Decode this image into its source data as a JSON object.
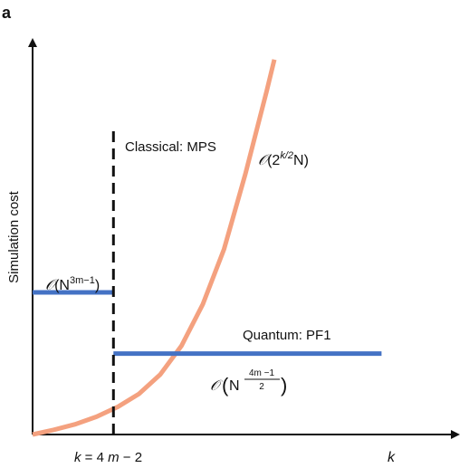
{
  "panel_label": "a",
  "chart_data": {
    "type": "line",
    "title": "",
    "xlabel": "k",
    "ylabel": "Simulation cost",
    "x_tick_label": {
      "k": "k",
      "rest": " = 4m − 2",
      "m": "m"
    },
    "grid": false,
    "legend": "none",
    "annotations": {
      "classical_label": "Classical: MPS",
      "quantum_label": "Quantum: PF1",
      "exp_curve": {
        "O": "𝒪",
        "open": "(2",
        "sup": "k/2",
        "tail": "N)"
      },
      "classical_level": {
        "O": "𝒪",
        "open": "(N",
        "sup": "3m−1",
        "close": ")"
      },
      "quantum_level": {
        "O": "𝒪",
        "open": "(",
        "N": "N",
        "frac_num": "4m −1",
        "frac_den": "2",
        "close": ")"
      }
    },
    "series": [
      {
        "color": "#F4A17F",
        "curve": "exponential",
        "points": [
          [
            0.0,
            0.0
          ],
          [
            0.05,
            0.012
          ],
          [
            0.1,
            0.026
          ],
          [
            0.15,
            0.045
          ],
          [
            0.2,
            0.07
          ],
          [
            0.25,
            0.103
          ],
          [
            0.3,
            0.152
          ],
          [
            0.35,
            0.225
          ],
          [
            0.4,
            0.33
          ],
          [
            0.45,
            0.47
          ],
          [
            0.5,
            0.66
          ],
          [
            0.55,
            0.87
          ],
          [
            0.568,
            0.95
          ]
        ]
      },
      {
        "color": "#4472C4",
        "curve": "classical-level",
        "x": [
          0.0,
          0.19
        ],
        "y": 0.36
      },
      {
        "color": "#4472C4",
        "curve": "quantum-level",
        "x": [
          0.19,
          0.82
        ],
        "y": 0.205
      }
    ],
    "vertical_marker": {
      "x": 0.19,
      "style": "dashed",
      "color": "#111111"
    },
    "xlim": [
      0,
      1
    ],
    "ylim": [
      0,
      1
    ]
  }
}
